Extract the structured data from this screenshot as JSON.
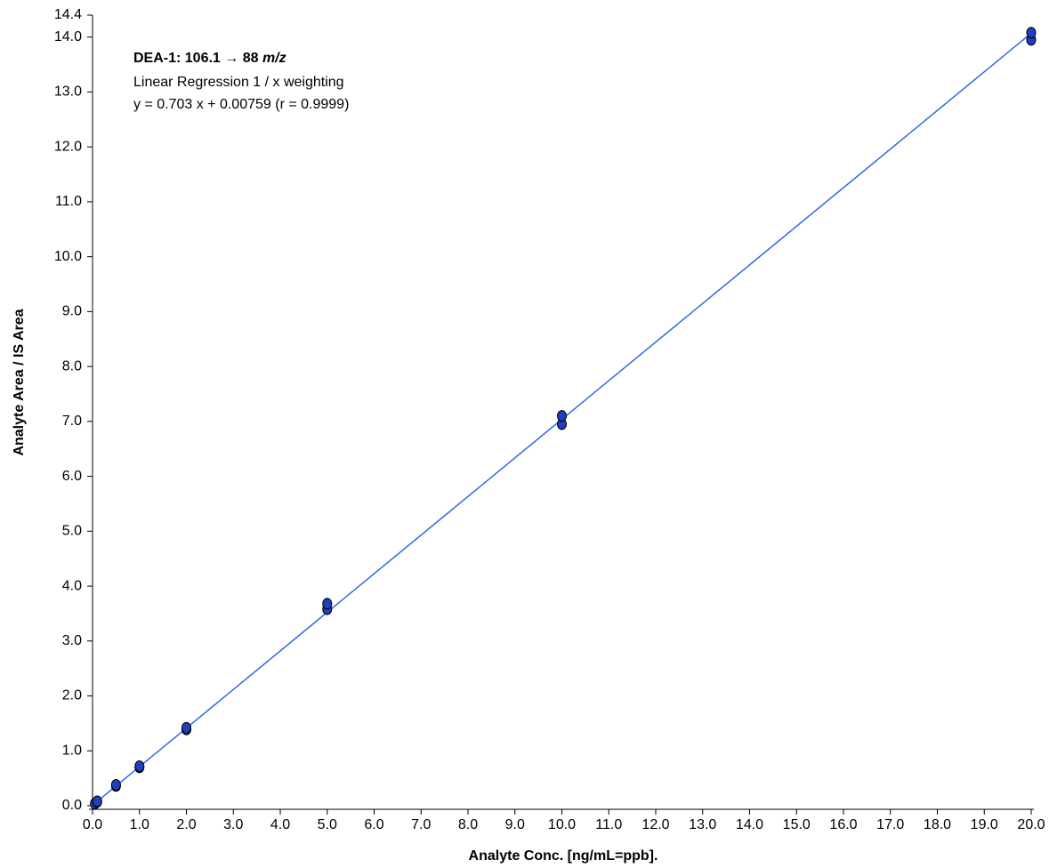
{
  "chart_data": {
    "type": "scatter",
    "title": "DEA-1: 106.1 → 88 ",
    "title_italic": "m/z",
    "annotations": [
      "Linear Regression  1 / x weighting",
      "y = 0.703 x + 0.00759 (r = 0.9999)"
    ],
    "x_label": "Analyte Conc. [ng/mL=ppb].",
    "y_label": "Analyte Area / IS Area",
    "x": [
      0.05,
      0.1,
      0.1,
      0.5,
      0.5,
      1,
      1,
      2,
      2,
      5,
      5,
      10,
      10,
      20,
      20
    ],
    "values": [
      0.04,
      0.07,
      0.08,
      0.36,
      0.38,
      0.7,
      0.72,
      1.39,
      1.42,
      3.58,
      3.68,
      6.95,
      7.1,
      13.95,
      14.08
    ],
    "color": "#1f3fbf",
    "fit_line": {
      "x": [
        0,
        20
      ],
      "values": [
        0.008,
        14.07
      ],
      "color": "#3366e6"
    },
    "xlim": [
      0,
      20
    ],
    "ylim": [
      0,
      14.4
    ],
    "xticks": [
      {
        "value": 0,
        "label": "0.0"
      },
      {
        "value": 1,
        "label": "1.0"
      },
      {
        "value": 2,
        "label": "2.0"
      },
      {
        "value": 3,
        "label": "3.0"
      },
      {
        "value": 4,
        "label": "4.0"
      },
      {
        "value": 5,
        "label": "5.0"
      },
      {
        "value": 6,
        "label": "6.0"
      },
      {
        "value": 7,
        "label": "7.0"
      },
      {
        "value": 8,
        "label": "8.0"
      },
      {
        "value": 9,
        "label": "9.0"
      },
      {
        "value": 10,
        "label": "10.0"
      },
      {
        "value": 11,
        "label": "11.0"
      },
      {
        "value": 12,
        "label": "12.0"
      },
      {
        "value": 13,
        "label": "13.0"
      },
      {
        "value": 14,
        "label": "14.0"
      },
      {
        "value": 15,
        "label": "15.0"
      },
      {
        "value": 16,
        "label": "16.0"
      },
      {
        "value": 17,
        "label": "17.0"
      },
      {
        "value": 18,
        "label": "18.0"
      },
      {
        "value": 19,
        "label": "19.0"
      },
      {
        "value": 20,
        "label": "20.0"
      }
    ],
    "yticks": [
      {
        "value": 0,
        "label": "0.0"
      },
      {
        "value": 1,
        "label": "1.0"
      },
      {
        "value": 2,
        "label": "2.0"
      },
      {
        "value": 3,
        "label": "3.0"
      },
      {
        "value": 4,
        "label": "4.0"
      },
      {
        "value": 5,
        "label": "5.0"
      },
      {
        "value": 6,
        "label": "6.0"
      },
      {
        "value": 7,
        "label": "7.0"
      },
      {
        "value": 8,
        "label": "8.0"
      },
      {
        "value": 9,
        "label": "9.0"
      },
      {
        "value": 10,
        "label": "10.0"
      },
      {
        "value": 11,
        "label": "11.0"
      },
      {
        "value": 12,
        "label": "12.0"
      },
      {
        "value": 13,
        "label": "13.0"
      },
      {
        "value": 14,
        "label": "14.0"
      },
      14.4
    ],
    "grid": false
  }
}
